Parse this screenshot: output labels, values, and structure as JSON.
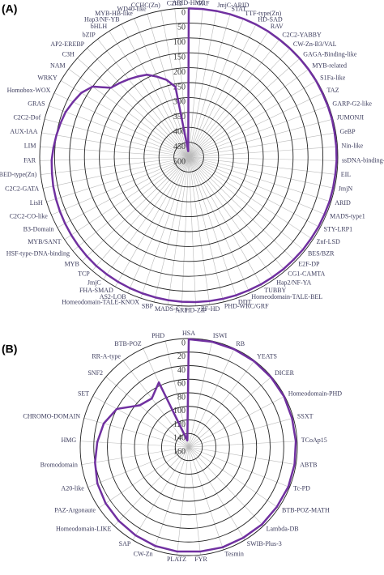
{
  "chart_data": [
    {
      "type": "radar",
      "label": "(A)",
      "color": "#7030a0",
      "categories": [
        "ARID-HMG",
        "GRF",
        "JmjC-ARID",
        "STAT",
        "TTF-type(Zn)",
        "HD-SAD",
        "RAV",
        "C2C2-YABBY",
        "CW-Zn-B3/VAL",
        "GAGA-Binding-like",
        "MYB-related",
        "S1Fa-like",
        "TAZ",
        "GARP-G2-like",
        "JUMONJI",
        "GeBP",
        "Nin-like",
        "ssDNA-binding-TF",
        "EIL",
        "JmjN",
        "ARID",
        "MADS-type1",
        "STY-LRP1",
        "Znf-LSD",
        "BES/BZR",
        "E2F-DP",
        "CG1-CAMTA",
        "Hap2/NF-YA",
        "TUBBY",
        "Homeodomain-TALE-BEL",
        "DDT",
        "PHD-WRC/GRF",
        "ZF-HD",
        "HD-ZIP",
        "ARF",
        "MADS-C",
        "SBP",
        "Homeodomain-TALE-KNOX",
        "AS2-LOB",
        "FHA-SMAD",
        "JmjC",
        "TCP",
        "MYB",
        "HSF-type-DNA-binding",
        "MYB/SANT",
        "B3-Domain",
        "C2C2-CO-like",
        "LisH",
        "C2C2-GATA",
        "BED-type(Zn)",
        "FAR",
        "LIM",
        "AUX-IAA",
        "C2C2-Dof",
        "GRAS",
        "Homobox-WOX",
        "WRKY",
        "NAM",
        "C3H",
        "AP2-EREBP",
        "bZIP",
        "bHLH",
        "Hap3/NF-YB",
        "MYB-HB-like",
        "WD40-like",
        "CCHC(Zn)",
        "C2H2"
      ],
      "values": [
        1,
        1,
        1,
        1,
        1,
        1,
        1,
        2,
        2,
        2,
        2,
        2,
        3,
        3,
        3,
        4,
        4,
        4,
        5,
        5,
        5,
        6,
        6,
        7,
        7,
        8,
        8,
        9,
        9,
        10,
        10,
        11,
        12,
        13,
        14,
        15,
        16,
        17,
        18,
        19,
        20,
        21,
        23,
        25,
        27,
        29,
        31,
        33,
        35,
        38,
        40,
        45,
        50,
        55,
        60,
        70,
        80,
        100,
        150,
        160,
        170,
        180,
        190,
        210,
        230,
        260,
        480
      ],
      "rlim": [
        500,
        0
      ],
      "rticks": [
        0,
        50,
        100,
        150,
        200,
        250,
        300,
        350,
        400,
        450,
        500
      ]
    },
    {
      "type": "radar",
      "label": "(B)",
      "color": "#7030a0",
      "categories": [
        "HSA",
        "ISWI",
        "RB",
        "YEATS",
        "DICER",
        "Homeodomain-PHD",
        "SSXT",
        "TCoAp15",
        "ABTB",
        "Tc-PD",
        "BTB-POZ-MATH",
        "Lambda-DB",
        "SWIB-Plus-3",
        "Tesmin",
        "FYR",
        "PLATZ",
        "CW-Zn",
        "SAP",
        "Homeodomain-LIKE",
        "PAZ-Argonaute",
        "A20-like",
        "Bromodomain",
        "HMG",
        "CHROMO-DOMAIN",
        "SET",
        "SNF2",
        "RR-A-type",
        "BTB-POZ",
        "PHD"
      ],
      "values": [
        1,
        1,
        1,
        1,
        1,
        1,
        2,
        2,
        2,
        2,
        3,
        3,
        4,
        4,
        5,
        5,
        6,
        8,
        10,
        12,
        15,
        20,
        25,
        30,
        40,
        65,
        70,
        55,
        150
      ],
      "rlim": [
        160,
        0
      ],
      "rticks": [
        0,
        20,
        40,
        60,
        80,
        100,
        120,
        140,
        160
      ]
    }
  ]
}
